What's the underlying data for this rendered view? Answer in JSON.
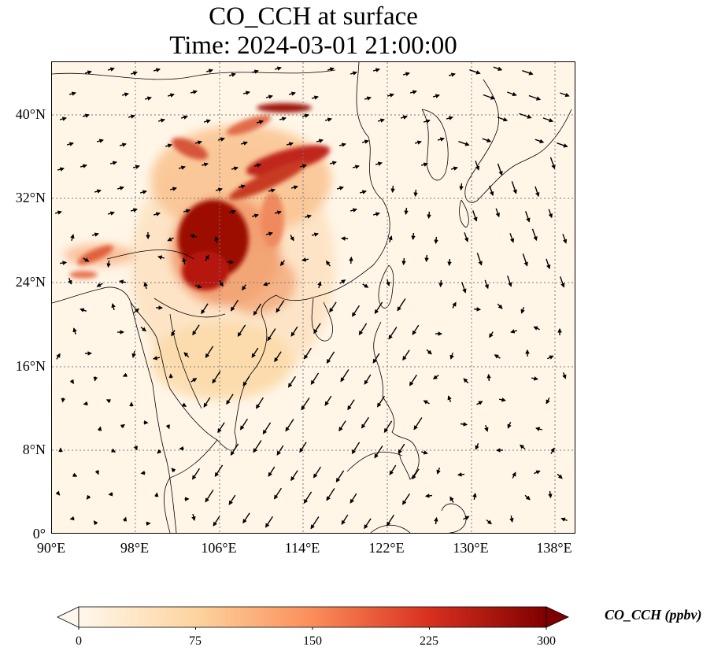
{
  "title": {
    "line1": "CO_CCH at surface",
    "line2": "Time: 2024-03-01 21:00:00"
  },
  "axes": {
    "lat_ticks": [
      "40°N",
      "32°N",
      "24°N",
      "16°N",
      "8°N",
      "0°"
    ],
    "lon_ticks": [
      "90°E",
      "98°E",
      "106°E",
      "114°E",
      "122°E",
      "130°E",
      "138°E"
    ],
    "lon_range": [
      90,
      140
    ],
    "lat_range": [
      0,
      45
    ],
    "gridlines": "dotted"
  },
  "colorbar": {
    "label": "CO_CCH (ppbv)",
    "ticks": [
      "0",
      "75",
      "150",
      "225",
      "300"
    ],
    "range": [
      0,
      300
    ],
    "colormap": "OrRd",
    "extend": "both",
    "colors": [
      "#fff7ec",
      "#fdd49e",
      "#fc8d59",
      "#d7301f",
      "#7f0000"
    ]
  },
  "map_layers": {
    "field": "CO concentration (high over Sichuan basin and eastern China)",
    "vectors": "surface wind arrows"
  }
}
